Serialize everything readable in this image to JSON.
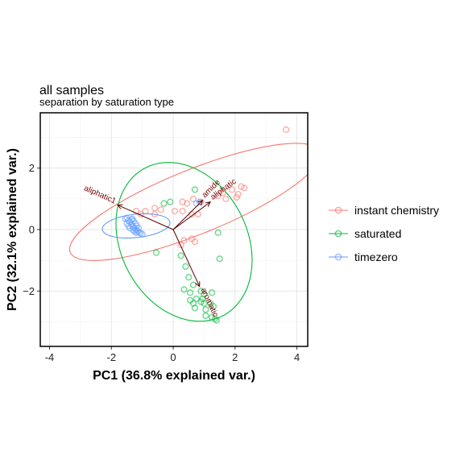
{
  "chart_data": {
    "type": "scatter",
    "title": "all samples",
    "subtitle": "separation by saturation type",
    "xlabel": "PC1 (36.8% explained var.)",
    "ylabel": "PC2 (32.1% explained var.)",
    "xlim": [
      -4.3,
      4.35
    ],
    "ylim": [
      -3.8,
      3.8
    ],
    "xticks": [
      -4,
      -2,
      0,
      2,
      4
    ],
    "yticks": [
      -2,
      0,
      2
    ],
    "grid": true,
    "legend_position": "right",
    "series": [
      {
        "name": "instant chemistry",
        "color": "#F8766D",
        "points": [
          [
            3.65,
            3.25
          ],
          [
            2.2,
            1.4
          ],
          [
            1.9,
            1.3
          ],
          [
            2.1,
            1.15
          ],
          [
            2.3,
            1.35
          ],
          [
            2.05,
            1.05
          ],
          [
            1.6,
            1.2
          ],
          [
            1.7,
            1.0
          ],
          [
            1.45,
            1.1
          ],
          [
            0.65,
            1.0
          ],
          [
            0.45,
            0.85
          ],
          [
            0.3,
            0.9
          ],
          [
            0.9,
            0.9
          ],
          [
            -0.6,
            0.7
          ],
          [
            -0.6,
            0.5
          ],
          [
            -0.4,
            0.65
          ],
          [
            -0.9,
            0.6
          ],
          [
            -1.2,
            0.6
          ],
          [
            -1.05,
            0.5
          ],
          [
            0.3,
            0.6
          ],
          [
            0.05,
            0.6
          ],
          [
            0.6,
            0.5
          ],
          [
            0.8,
            0.5
          ],
          [
            0.6,
            -0.3
          ],
          [
            0.35,
            -0.35
          ],
          [
            0.25,
            -0.5
          ],
          [
            0.7,
            -0.4
          ]
        ],
        "ellipse": {
          "center": [
            0.7,
            0.9
          ],
          "semi_axes": [
            4.35,
            1.05
          ],
          "angle_deg": 22
        }
      },
      {
        "name": "saturated",
        "color": "#00BA38",
        "points": [
          [
            0.7,
            1.3
          ],
          [
            -0.1,
            0.9
          ],
          [
            -0.3,
            0.85
          ],
          [
            1.45,
            -0.1
          ],
          [
            1.5,
            -0.95
          ],
          [
            -0.55,
            -0.75
          ],
          [
            0.25,
            -0.85
          ],
          [
            0.4,
            -1.2
          ],
          [
            0.5,
            -1.55
          ],
          [
            0.65,
            -1.8
          ],
          [
            0.55,
            -2.05
          ],
          [
            0.9,
            -2.0
          ],
          [
            1.0,
            -2.1
          ],
          [
            1.25,
            -2.05
          ],
          [
            0.75,
            -2.25
          ],
          [
            0.9,
            -2.35
          ],
          [
            1.0,
            -2.4
          ],
          [
            0.7,
            -2.55
          ],
          [
            1.05,
            -2.6
          ],
          [
            1.2,
            -2.4
          ],
          [
            1.3,
            -2.5
          ],
          [
            1.05,
            -2.8
          ],
          [
            1.25,
            -2.85
          ],
          [
            1.35,
            -2.9
          ],
          [
            1.4,
            -2.95
          ],
          [
            0.55,
            -2.3
          ],
          [
            0.65,
            -2.4
          ],
          [
            0.35,
            -1.95
          ],
          [
            0.95,
            -2.25
          ]
        ],
        "ellipse": {
          "center": [
            0.35,
            -0.4
          ],
          "semi_axes": [
            2.7,
            2.05
          ],
          "angle_deg": -62
        }
      },
      {
        "name": "timezero",
        "color": "#619CFF",
        "points": [
          [
            -1.5,
            0.38
          ],
          [
            -1.45,
            0.3
          ],
          [
            -1.4,
            0.25
          ],
          [
            -1.35,
            0.18
          ],
          [
            -1.3,
            0.1
          ],
          [
            -1.25,
            0.05
          ],
          [
            -1.2,
            0.0
          ],
          [
            -1.15,
            -0.05
          ],
          [
            -1.1,
            -0.1
          ],
          [
            -1.05,
            -0.12
          ],
          [
            -1.0,
            -0.15
          ],
          [
            -1.5,
            0.2
          ],
          [
            -1.45,
            0.12
          ],
          [
            -1.4,
            0.05
          ],
          [
            -1.3,
            -0.02
          ],
          [
            -1.25,
            -0.06
          ],
          [
            -1.2,
            -0.1
          ],
          [
            -1.55,
            0.35
          ],
          [
            -1.35,
            0.32
          ],
          [
            -1.28,
            0.28
          ],
          [
            -1.32,
            0.35
          ],
          [
            -1.22,
            0.2
          ],
          [
            -1.18,
            0.12
          ],
          [
            -1.12,
            0.05
          ],
          [
            0.75,
            0.85
          ],
          [
            0.85,
            0.9
          ]
        ],
        "ellipse": {
          "center": [
            -1.2,
            0.12
          ],
          "semi_axes": [
            1.1,
            0.38
          ],
          "angle_deg": 6
        }
      }
    ],
    "loadings": [
      {
        "label": "aliphatic1",
        "x": -1.8,
        "y": 0.8
      },
      {
        "label": "amide",
        "x": 0.95,
        "y": 0.95
      },
      {
        "label": "aliphatic",
        "x": 1.2,
        "y": 0.9
      },
      {
        "label": "aromatic",
        "x": 0.85,
        "y": -1.85
      }
    ]
  }
}
